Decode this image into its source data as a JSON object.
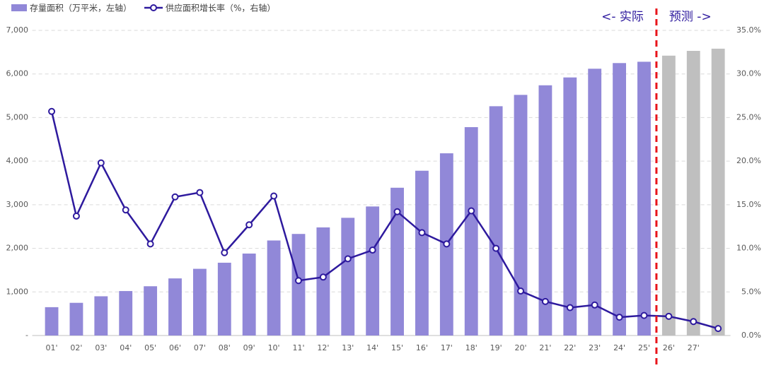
{
  "chart_data": {
    "type": "bar_line",
    "categories": [
      "01'",
      "02'",
      "03'",
      "04'",
      "05'",
      "06'",
      "07'",
      "08'",
      "09'",
      "10'",
      "11'",
      "12'",
      "13'",
      "14'",
      "15'",
      "16'",
      "17'",
      "18'",
      "19'",
      "20'",
      "21'",
      "22'",
      "23'",
      "24'",
      "25'",
      "26'",
      "27'",
      null
    ],
    "series": [
      {
        "name": "存量面积（万平米，左轴）",
        "type": "bar",
        "color": "#9188d8",
        "colors": [
          "#9188d8",
          "#9188d8",
          "#9188d8",
          "#9188d8",
          "#9188d8",
          "#9188d8",
          "#9188d8",
          "#9188d8",
          "#9188d8",
          "#9188d8",
          "#9188d8",
          "#9188d8",
          "#9188d8",
          "#9188d8",
          "#9188d8",
          "#9188d8",
          "#9188d8",
          "#9188d8",
          "#9188d8",
          "#9188d8",
          "#9188d8",
          "#9188d8",
          "#9188d8",
          "#9188d8",
          "#9188d8",
          "#bfbfbf",
          "#bfbfbf",
          "#bfbfbf"
        ],
        "values": [
          650,
          750,
          900,
          1020,
          1130,
          1310,
          1530,
          1670,
          1880,
          2180,
          2330,
          2480,
          2700,
          2960,
          3390,
          3780,
          4180,
          4780,
          5260,
          5520,
          5740,
          5920,
          6120,
          6250,
          6280,
          6420,
          6530,
          6580
        ]
      },
      {
        "name": "供应面积增长率（%，右轴）",
        "type": "line",
        "axis": "y2",
        "color": "#2e1a9e",
        "values": [
          25.7,
          13.7,
          19.8,
          14.4,
          10.5,
          15.9,
          16.4,
          9.5,
          12.7,
          16.0,
          6.3,
          6.7,
          8.8,
          9.8,
          14.2,
          11.8,
          10.5,
          14.3,
          10.0,
          5.1,
          3.9,
          3.2,
          3.5,
          2.1,
          2.3,
          2.2,
          1.6,
          0.8
        ]
      }
    ],
    "ylim": [
      0,
      7000
    ],
    "yticks": [
      {
        "value": 0,
        "label": "-"
      },
      {
        "value": 1000,
        "label": "1,000"
      },
      {
        "value": 2000,
        "label": "2,000"
      },
      {
        "value": 3000,
        "label": "3,000"
      },
      {
        "value": 4000,
        "label": "4,000"
      },
      {
        "value": 5000,
        "label": "5,000"
      },
      {
        "value": 6000,
        "label": "6,000"
      },
      {
        "value": 7000,
        "label": "7,000"
      }
    ],
    "y2lim": [
      0,
      35
    ],
    "y2ticks": [
      {
        "value": 0,
        "label": "0.0%"
      },
      {
        "value": 5,
        "label": "5.0%"
      },
      {
        "value": 10,
        "label": "10.0%"
      },
      {
        "value": 15,
        "label": "15.0%"
      },
      {
        "value": 20,
        "label": "20.0%"
      },
      {
        "value": 25,
        "label": "25.0%"
      },
      {
        "value": 30,
        "label": "30.0%"
      },
      {
        "value": 35,
        "label": "35.0%"
      }
    ],
    "grid": true,
    "legend": "top-left",
    "annotations": [
      "<- 实际",
      "预测 ->"
    ],
    "divider_color": "#e8141b"
  }
}
